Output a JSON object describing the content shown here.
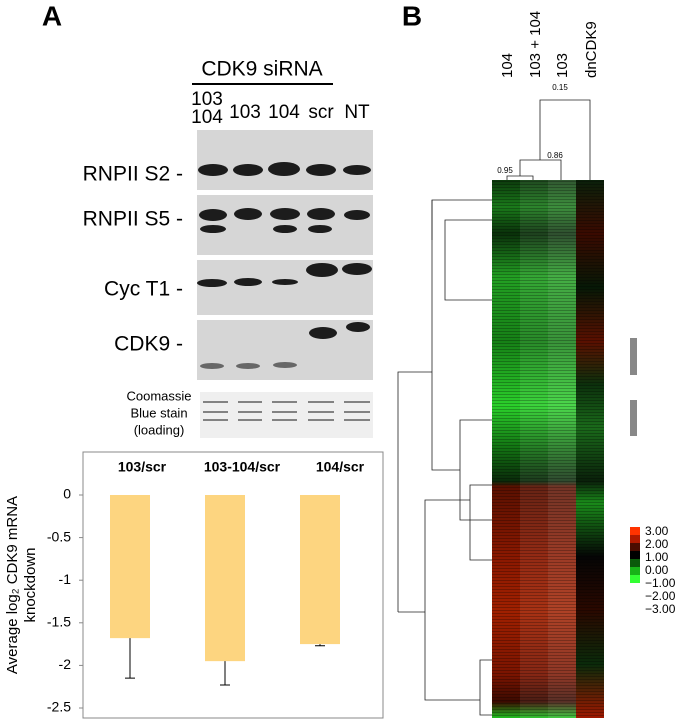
{
  "panel_labels": [
    "A",
    "B"
  ],
  "blot": {
    "header": "CDK9 siRNA",
    "lanes": [
      [
        "103",
        "104"
      ],
      [
        "103"
      ],
      [
        "104"
      ],
      [
        "scr"
      ],
      [
        "NT"
      ]
    ],
    "rows": [
      "RNPII S2 -",
      "RNPII S5 -",
      "Cyc T1 -",
      "CDK9 -"
    ],
    "loading": [
      "Coomassie",
      "Blue stain",
      "(loading)"
    ]
  },
  "heatmap": {
    "columns": [
      "104",
      "103 + 104",
      "103",
      "dnCDK9"
    ],
    "node_labels": [
      "0.15",
      "0.86",
      "0.95"
    ],
    "scale": [
      {
        "label": "3.00",
        "color": "#ff3300"
      },
      {
        "label": "2.00",
        "color": "#b01a00"
      },
      {
        "label": "1.00",
        "color": "#4a0c00"
      },
      {
        "label": "0.00",
        "color": "#000000"
      },
      {
        "label": "−1.00",
        "color": "#0a5a0a"
      },
      {
        "label": "−2.00",
        "color": "#18b418"
      },
      {
        "label": "−3.00",
        "color": "#33ff33"
      }
    ]
  },
  "chart_data": {
    "type": "bar",
    "categories": [
      "103/scr",
      "103-104/scr",
      "104/scr"
    ],
    "values": [
      -1.68,
      -1.95,
      -1.75
    ],
    "errors": [
      0.47,
      0.28,
      0.02
    ],
    "color": "#fdd580",
    "ylabel": [
      "Average log₂ CDK9 mRNA",
      "knockdown"
    ],
    "ylim": [
      -2.5,
      0.5
    ],
    "yticks": [
      0,
      -0.5,
      -1,
      -1.5,
      -2,
      -2.5
    ]
  }
}
